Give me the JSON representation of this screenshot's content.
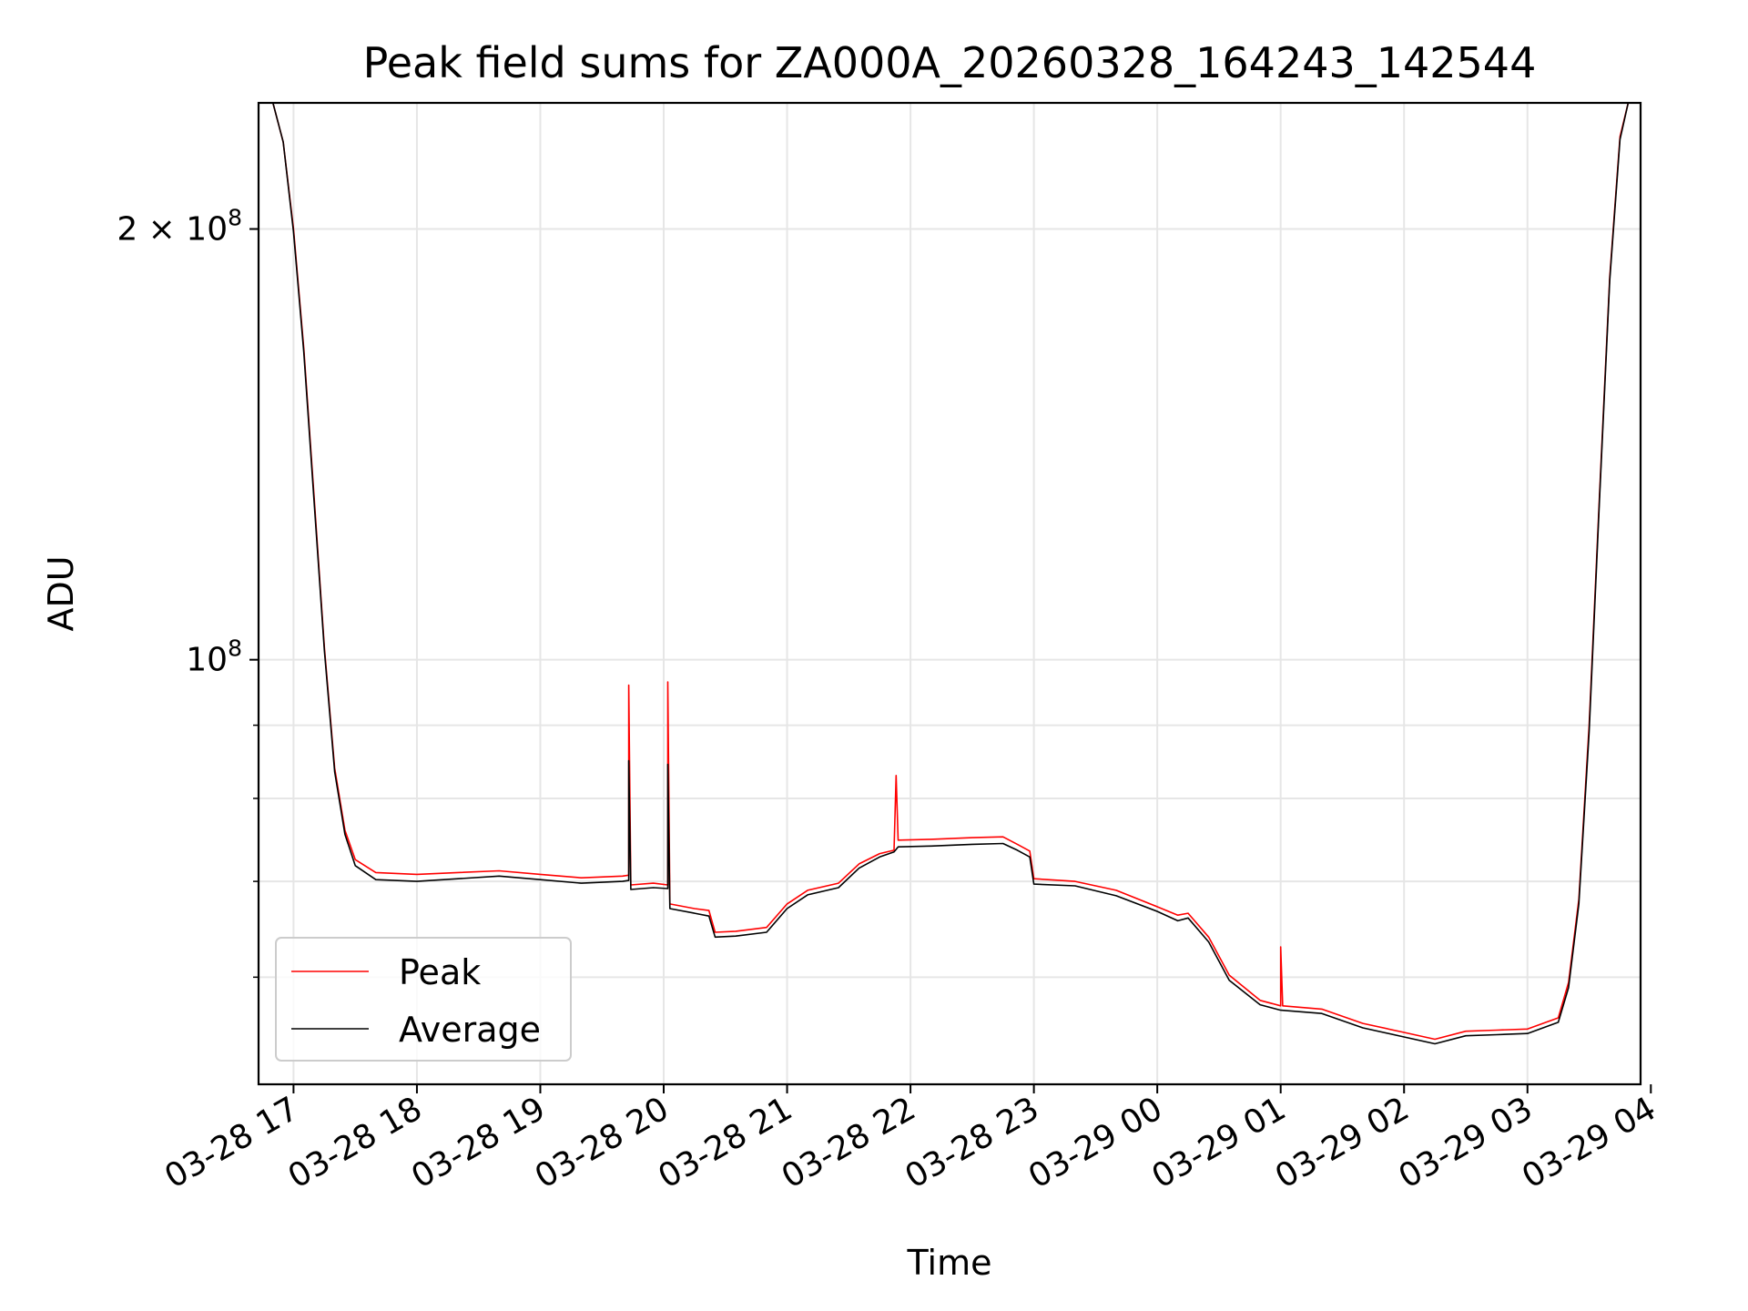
{
  "chart_data": {
    "type": "line",
    "title": "Peak field sums for ZA000A_20260328_164243_142544",
    "xlabel": "Time",
    "ylabel": "ADU",
    "y_scale": "log",
    "ylim": [
      50500000,
      245000000
    ],
    "xlim": [
      "2026-03-28T16:43",
      "2026-03-29T03:55"
    ],
    "grid": true,
    "legend_position": "lower left",
    "x_ticks": [
      {
        "t": "2026-03-28T17:00",
        "label": "03-28 17"
      },
      {
        "t": "2026-03-28T18:00",
        "label": "03-28 18"
      },
      {
        "t": "2026-03-28T19:00",
        "label": "03-28 19"
      },
      {
        "t": "2026-03-28T20:00",
        "label": "03-28 20"
      },
      {
        "t": "2026-03-28T21:00",
        "label": "03-28 21"
      },
      {
        "t": "2026-03-28T22:00",
        "label": "03-28 22"
      },
      {
        "t": "2026-03-28T23:00",
        "label": "03-28 23"
      },
      {
        "t": "2026-03-29T00:00",
        "label": "03-29 00"
      },
      {
        "t": "2026-03-29T01:00",
        "label": "03-29 01"
      },
      {
        "t": "2026-03-29T02:00",
        "label": "03-29 02"
      },
      {
        "t": "2026-03-29T03:00",
        "label": "03-29 03"
      },
      {
        "t": "2026-03-29T04:00",
        "label": "03-29 04"
      }
    ],
    "y_major_ticks": [
      {
        "value": 100000000,
        "base": "10",
        "exp": "8",
        "mantissa": ""
      },
      {
        "value": 200000000,
        "base": "10",
        "exp": "8",
        "mantissa": "2 × "
      }
    ],
    "y_minor_ticks": [
      60000000,
      70000000,
      80000000,
      90000000
    ],
    "series": [
      {
        "name": "Peak",
        "color": "#ff0000",
        "points": [
          [
            "2026-03-28T16:43",
            245000000
          ],
          [
            "2026-03-28T16:50",
            245000000
          ],
          [
            "2026-03-28T16:55",
            230000000
          ],
          [
            "2026-03-28T17:00",
            200000000
          ],
          [
            "2026-03-28T17:05",
            165000000
          ],
          [
            "2026-03-28T17:10",
            130000000
          ],
          [
            "2026-03-28T17:15",
            102000000
          ],
          [
            "2026-03-28T17:20",
            84000000
          ],
          [
            "2026-03-28T17:25",
            76000000
          ],
          [
            "2026-03-28T17:30",
            72500000
          ],
          [
            "2026-03-28T17:40",
            71000000
          ],
          [
            "2026-03-28T18:00",
            70800000
          ],
          [
            "2026-03-28T18:20",
            71000000
          ],
          [
            "2026-03-28T18:40",
            71200000
          ],
          [
            "2026-03-28T19:00",
            70800000
          ],
          [
            "2026-03-28T19:20",
            70400000
          ],
          [
            "2026-03-28T19:40",
            70600000
          ],
          [
            "2026-03-28T19:43",
            70700000
          ],
          [
            "2026-03-28T19:43",
            96000000
          ],
          [
            "2026-03-28T19:44",
            69600000
          ],
          [
            "2026-03-28T19:55",
            69800000
          ],
          [
            "2026-03-28T20:02",
            69600000
          ],
          [
            "2026-03-28T20:02",
            96500000
          ],
          [
            "2026-03-28T20:03",
            67500000
          ],
          [
            "2026-03-28T20:15",
            67000000
          ],
          [
            "2026-03-28T20:22",
            66800000
          ],
          [
            "2026-03-28T20:25",
            64500000
          ],
          [
            "2026-03-28T20:35",
            64600000
          ],
          [
            "2026-03-28T20:50",
            65000000
          ],
          [
            "2026-03-28T21:00",
            67500000
          ],
          [
            "2026-03-28T21:10",
            69000000
          ],
          [
            "2026-03-28T21:25",
            69800000
          ],
          [
            "2026-03-28T21:35",
            72000000
          ],
          [
            "2026-03-28T21:45",
            73200000
          ],
          [
            "2026-03-28T21:52",
            73600000
          ],
          [
            "2026-03-28T21:53",
            83000000
          ],
          [
            "2026-03-28T21:54",
            74800000
          ],
          [
            "2026-03-28T22:10",
            74900000
          ],
          [
            "2026-03-28T22:30",
            75100000
          ],
          [
            "2026-03-28T22:45",
            75200000
          ],
          [
            "2026-03-28T22:52",
            74300000
          ],
          [
            "2026-03-28T22:58",
            73500000
          ],
          [
            "2026-03-28T23:00",
            70300000
          ],
          [
            "2026-03-28T23:20",
            70000000
          ],
          [
            "2026-03-28T23:40",
            69000000
          ],
          [
            "2026-03-29T00:00",
            67200000
          ],
          [
            "2026-03-29T00:10",
            66300000
          ],
          [
            "2026-03-29T00:15",
            66500000
          ],
          [
            "2026-03-29T00:25",
            64000000
          ],
          [
            "2026-03-29T00:35",
            60200000
          ],
          [
            "2026-03-29T00:50",
            57800000
          ],
          [
            "2026-03-29T01:00",
            57300000
          ],
          [
            "2026-03-29T01:00",
            63000000
          ],
          [
            "2026-03-29T01:01",
            57300000
          ],
          [
            "2026-03-29T01:20",
            57000000
          ],
          [
            "2026-03-29T01:40",
            55700000
          ],
          [
            "2026-03-29T02:00",
            54900000
          ],
          [
            "2026-03-29T02:15",
            54300000
          ],
          [
            "2026-03-29T02:30",
            55000000
          ],
          [
            "2026-03-29T02:45",
            55100000
          ],
          [
            "2026-03-29T03:00",
            55200000
          ],
          [
            "2026-03-29T03:15",
            56200000
          ],
          [
            "2026-03-29T03:20",
            59500000
          ],
          [
            "2026-03-29T03:25",
            68000000
          ],
          [
            "2026-03-29T03:30",
            90000000
          ],
          [
            "2026-03-29T03:35",
            130000000
          ],
          [
            "2026-03-29T03:40",
            185000000
          ],
          [
            "2026-03-29T03:45",
            232000000
          ],
          [
            "2026-03-29T03:49",
            245000000
          ],
          [
            "2026-03-29T03:55",
            245000000
          ]
        ]
      },
      {
        "name": "Average",
        "color": "#000000",
        "points": [
          [
            "2026-03-28T16:43",
            245000000
          ],
          [
            "2026-03-28T16:50",
            245000000
          ],
          [
            "2026-03-28T16:55",
            230000000
          ],
          [
            "2026-03-28T17:00",
            199000000
          ],
          [
            "2026-03-28T17:05",
            164000000
          ],
          [
            "2026-03-28T17:10",
            129000000
          ],
          [
            "2026-03-28T17:15",
            101500000
          ],
          [
            "2026-03-28T17:20",
            83500000
          ],
          [
            "2026-03-28T17:25",
            75500000
          ],
          [
            "2026-03-28T17:30",
            71800000
          ],
          [
            "2026-03-28T17:40",
            70200000
          ],
          [
            "2026-03-28T18:00",
            70000000
          ],
          [
            "2026-03-28T18:20",
            70300000
          ],
          [
            "2026-03-28T18:40",
            70600000
          ],
          [
            "2026-03-28T19:00",
            70200000
          ],
          [
            "2026-03-28T19:20",
            69800000
          ],
          [
            "2026-03-28T19:40",
            70000000
          ],
          [
            "2026-03-28T19:43",
            70100000
          ],
          [
            "2026-03-28T19:43",
            85000000
          ],
          [
            "2026-03-28T19:44",
            69100000
          ],
          [
            "2026-03-28T19:55",
            69300000
          ],
          [
            "2026-03-28T20:02",
            69200000
          ],
          [
            "2026-03-28T20:02",
            84500000
          ],
          [
            "2026-03-28T20:03",
            67000000
          ],
          [
            "2026-03-28T20:15",
            66500000
          ],
          [
            "2026-03-28T20:22",
            66200000
          ],
          [
            "2026-03-28T20:25",
            64000000
          ],
          [
            "2026-03-28T20:35",
            64100000
          ],
          [
            "2026-03-28T20:50",
            64500000
          ],
          [
            "2026-03-28T21:00",
            67000000
          ],
          [
            "2026-03-28T21:10",
            68500000
          ],
          [
            "2026-03-28T21:25",
            69300000
          ],
          [
            "2026-03-28T21:35",
            71500000
          ],
          [
            "2026-03-28T21:45",
            72800000
          ],
          [
            "2026-03-28T21:52",
            73400000
          ],
          [
            "2026-03-28T21:54",
            74000000
          ],
          [
            "2026-03-28T22:10",
            74100000
          ],
          [
            "2026-03-28T22:30",
            74300000
          ],
          [
            "2026-03-28T22:45",
            74400000
          ],
          [
            "2026-03-28T22:52",
            73600000
          ],
          [
            "2026-03-28T22:58",
            72800000
          ],
          [
            "2026-03-28T23:00",
            69700000
          ],
          [
            "2026-03-28T23:20",
            69500000
          ],
          [
            "2026-03-28T23:40",
            68400000
          ],
          [
            "2026-03-29T00:00",
            66700000
          ],
          [
            "2026-03-29T00:10",
            65700000
          ],
          [
            "2026-03-29T00:15",
            66000000
          ],
          [
            "2026-03-29T00:25",
            63500000
          ],
          [
            "2026-03-29T00:35",
            59700000
          ],
          [
            "2026-03-29T00:50",
            57400000
          ],
          [
            "2026-03-29T01:00",
            56900000
          ],
          [
            "2026-03-29T01:20",
            56600000
          ],
          [
            "2026-03-29T01:40",
            55300000
          ],
          [
            "2026-03-29T02:00",
            54500000
          ],
          [
            "2026-03-29T02:15",
            53900000
          ],
          [
            "2026-03-29T02:30",
            54600000
          ],
          [
            "2026-03-29T02:45",
            54700000
          ],
          [
            "2026-03-29T03:00",
            54800000
          ],
          [
            "2026-03-29T03:15",
            55800000
          ],
          [
            "2026-03-29T03:20",
            59000000
          ],
          [
            "2026-03-29T03:25",
            67500000
          ],
          [
            "2026-03-29T03:30",
            89000000
          ],
          [
            "2026-03-29T03:35",
            129000000
          ],
          [
            "2026-03-29T03:40",
            184000000
          ],
          [
            "2026-03-29T03:45",
            231000000
          ],
          [
            "2026-03-29T03:49",
            245000000
          ],
          [
            "2026-03-29T03:55",
            245000000
          ]
        ]
      }
    ]
  }
}
